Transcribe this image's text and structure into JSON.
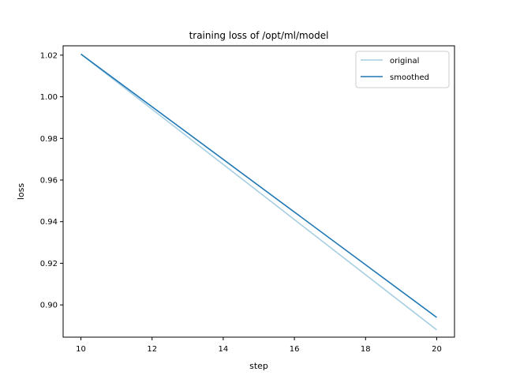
{
  "chart_data": {
    "type": "line",
    "title": "training loss of /opt/ml/model",
    "xlabel": "step",
    "ylabel": "loss",
    "xlim": [
      9.5,
      20.5
    ],
    "ylim": [
      0.8845,
      1.0245
    ],
    "xticks": [
      10,
      12,
      14,
      16,
      18,
      20
    ],
    "xtick_labels": [
      "10",
      "12",
      "14",
      "16",
      "18",
      "20"
    ],
    "yticks": [
      0.9,
      0.92,
      0.94,
      0.96,
      0.98,
      1.0,
      1.02
    ],
    "ytick_labels": [
      "0.90",
      "0.92",
      "0.94",
      "0.96",
      "0.98",
      "1.00",
      "1.02"
    ],
    "grid": false,
    "legend_position": "top-right",
    "series": [
      {
        "name": "original",
        "color": "#a6cee3",
        "x": [
          10,
          20
        ],
        "y": [
          1.0205,
          0.888
        ]
      },
      {
        "name": "smoothed",
        "color": "#1f77b4",
        "x": [
          10,
          20
        ],
        "y": [
          1.0205,
          0.894
        ]
      }
    ]
  }
}
